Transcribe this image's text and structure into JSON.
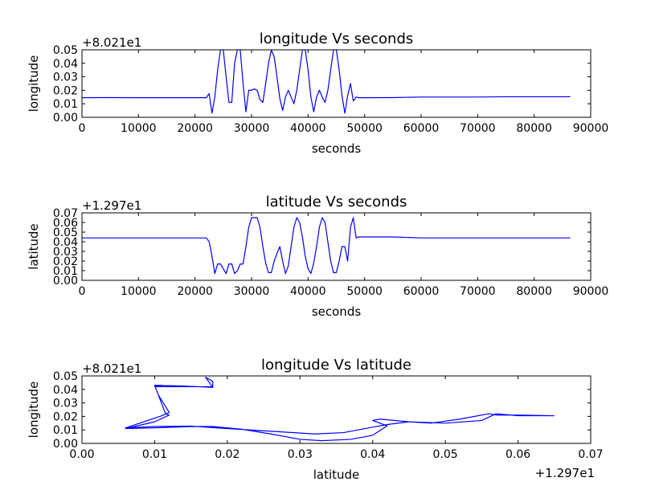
{
  "chart_data": [
    {
      "type": "line",
      "title": "longitude Vs seconds",
      "xlabel": "seconds",
      "ylabel": "longitude",
      "offset_label": "+8.021e1",
      "xlim": [
        0,
        90000
      ],
      "ylim": [
        0,
        0.05
      ],
      "xticks": [
        0,
        10000,
        20000,
        30000,
        40000,
        50000,
        60000,
        70000,
        80000,
        90000
      ],
      "xtick_labels": [
        "0",
        "10000",
        "20000",
        "30000",
        "40000",
        "50000",
        "60000",
        "70000",
        "80000",
        "90000"
      ],
      "yticks": [
        0,
        0.01,
        0.02,
        0.03,
        0.04,
        0.05
      ],
      "ytick_labels": [
        "0.00",
        "0.01",
        "0.02",
        "0.03",
        "0.04",
        "0.05"
      ],
      "color": "#0000ff",
      "series": [
        {
          "x": [
            0,
            5000,
            10000,
            15000,
            20000,
            22000,
            22500,
            23000,
            23500,
            24000,
            24500,
            25000,
            25500,
            26000,
            26500,
            27000,
            27500,
            28000,
            28500,
            29000,
            29500,
            30000,
            30500,
            31000,
            31500,
            32000,
            32500,
            33000,
            33500,
            34000,
            34500,
            35000,
            35500,
            36000,
            36500,
            37000,
            37500,
            38000,
            38500,
            39000,
            39500,
            40000,
            40500,
            41000,
            41500,
            42000,
            42500,
            43000,
            43500,
            44000,
            44500,
            45000,
            45500,
            46000,
            46500,
            47000,
            47500,
            48000,
            48500,
            49000,
            50000,
            55000,
            60000,
            70000,
            75000,
            86400
          ],
          "y": [
            0.0145,
            0.0146,
            0.0145,
            0.0145,
            0.0145,
            0.0145,
            0.0175,
            0.003,
            0.015,
            0.035,
            0.05,
            0.05,
            0.03,
            0.011,
            0.011,
            0.04,
            0.05,
            0.05,
            0.025,
            0.004,
            0.02,
            0.02,
            0.021,
            0.02,
            0.013,
            0.011,
            0.025,
            0.04,
            0.05,
            0.045,
            0.03,
            0.014,
            0.005,
            0.015,
            0.02,
            0.015,
            0.01,
            0.02,
            0.035,
            0.05,
            0.05,
            0.035,
            0.015,
            0.004,
            0.015,
            0.02,
            0.015,
            0.011,
            0.02,
            0.035,
            0.05,
            0.05,
            0.035,
            0.016,
            0.003,
            0.016,
            0.025,
            0.012,
            0.015,
            0.0145,
            0.0145,
            0.0146,
            0.015,
            0.015,
            0.0152,
            0.0152
          ]
        }
      ]
    },
    {
      "type": "line",
      "title": "latitude Vs seconds",
      "xlabel": "seconds",
      "ylabel": "latitude",
      "offset_label": "+1.297e1",
      "xlim": [
        0,
        90000
      ],
      "ylim": [
        0,
        0.07
      ],
      "xticks": [
        0,
        10000,
        20000,
        30000,
        40000,
        50000,
        60000,
        70000,
        80000,
        90000
      ],
      "xtick_labels": [
        "0",
        "10000",
        "20000",
        "30000",
        "40000",
        "50000",
        "60000",
        "70000",
        "80000",
        "90000"
      ],
      "yticks": [
        0,
        0.01,
        0.02,
        0.03,
        0.04,
        0.05,
        0.06,
        0.07
      ],
      "ytick_labels": [
        "0.00",
        "0.01",
        "0.02",
        "0.03",
        "0.04",
        "0.05",
        "0.06",
        "0.07"
      ],
      "color": "#0000ff",
      "series": [
        {
          "x": [
            0,
            5000,
            10000,
            15000,
            20000,
            22000,
            22500,
            23000,
            23500,
            24000,
            24500,
            25000,
            25500,
            26000,
            26500,
            27000,
            27500,
            28000,
            28500,
            29000,
            29500,
            30000,
            30500,
            31000,
            31500,
            32000,
            32500,
            33000,
            33500,
            34000,
            34500,
            35000,
            35500,
            36000,
            36500,
            37000,
            37500,
            38000,
            38500,
            39000,
            39500,
            40000,
            40500,
            41000,
            41500,
            42000,
            42500,
            43000,
            43500,
            44000,
            44500,
            45000,
            45500,
            46000,
            46500,
            47000,
            47500,
            48000,
            48500,
            49000,
            50000,
            55000,
            60000,
            70000,
            80000,
            86400
          ],
          "y": [
            0.044,
            0.044,
            0.044,
            0.044,
            0.044,
            0.044,
            0.04,
            0.025,
            0.007,
            0.017,
            0.017,
            0.012,
            0.007,
            0.017,
            0.017,
            0.007,
            0.01,
            0.017,
            0.017,
            0.035,
            0.055,
            0.065,
            0.065,
            0.065,
            0.055,
            0.035,
            0.018,
            0.008,
            0.008,
            0.02,
            0.028,
            0.035,
            0.02,
            0.007,
            0.015,
            0.035,
            0.055,
            0.065,
            0.06,
            0.045,
            0.025,
            0.012,
            0.007,
            0.018,
            0.035,
            0.055,
            0.065,
            0.06,
            0.04,
            0.02,
            0.008,
            0.008,
            0.02,
            0.035,
            0.035,
            0.02,
            0.055,
            0.065,
            0.044,
            0.045,
            0.045,
            0.045,
            0.044,
            0.044,
            0.044,
            0.044
          ]
        }
      ]
    },
    {
      "type": "line",
      "title": "longitude Vs latitude",
      "xlabel": "latitude",
      "ylabel": "longitude",
      "offset_label": "+8.021e1",
      "x_offset_label": "+1.297e1",
      "xlim": [
        0,
        0.07
      ],
      "ylim": [
        0,
        0.05
      ],
      "xticks": [
        0,
        0.01,
        0.02,
        0.03,
        0.04,
        0.05,
        0.06,
        0.07
      ],
      "xtick_labels": [
        "0.00",
        "0.01",
        "0.02",
        "0.03",
        "0.04",
        "0.05",
        "0.06",
        "0.07"
      ],
      "yticks": [
        0,
        0.01,
        0.02,
        0.03,
        0.04,
        0.05
      ],
      "ytick_labels": [
        "0.00",
        "0.01",
        "0.02",
        "0.03",
        "0.04",
        "0.05"
      ],
      "color": "#0000ff",
      "series": [
        {
          "x": [
            0.065,
            0.06,
            0.057,
            0.056,
            0.052,
            0.048,
            0.045,
            0.041,
            0.04,
            0.042,
            0.04,
            0.037,
            0.033,
            0.03,
            0.026,
            0.022,
            0.018,
            0.015,
            0.01,
            0.006,
            0.01,
            0.012,
            0.0115,
            0.011,
            0.01,
            0.011,
            0.01,
            0.014,
            0.018,
            0.018,
            0.017,
            0.017,
            0.018,
            0.014,
            0.01,
            0.0105,
            0.012,
            0.011,
            0.006,
            0.01,
            0.015,
            0.02,
            0.026,
            0.032,
            0.036,
            0.04,
            0.042,
            0.045,
            0.05,
            0.055,
            0.057,
            0.06,
            0.065
          ],
          "y": [
            0.0205,
            0.021,
            0.021,
            0.022,
            0.018,
            0.015,
            0.016,
            0.018,
            0.017,
            0.013,
            0.006,
            0.003,
            0.002,
            0.003,
            0.007,
            0.0105,
            0.0125,
            0.0125,
            0.0115,
            0.011,
            0.016,
            0.021,
            0.022,
            0.029,
            0.043,
            0.043,
            0.042,
            0.042,
            0.042,
            0.046,
            0.049,
            0.049,
            0.0415,
            0.0425,
            0.043,
            0.036,
            0.023,
            0.0205,
            0.0115,
            0.0125,
            0.0128,
            0.011,
            0.009,
            0.007,
            0.008,
            0.012,
            0.014,
            0.016,
            0.015,
            0.017,
            0.022,
            0.0205,
            0.0205
          ]
        }
      ]
    }
  ]
}
